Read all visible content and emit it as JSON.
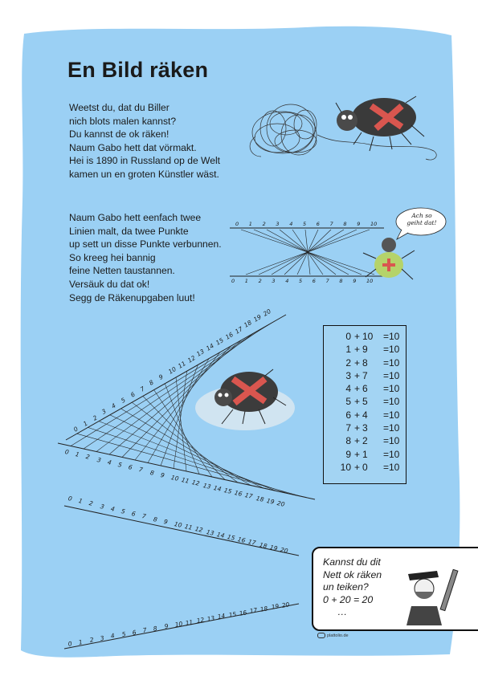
{
  "page": {
    "background_color": "#9bd0f4",
    "accent_red": "#d9564f"
  },
  "title": "En Bild räken",
  "intro_lines": [
    "Weetst du, dat du Biller",
    "nich blots malen kannst?",
    "Du kannst de ok räken!",
    "Naum Gabo hett dat vörmakt.",
    "Hei is 1890 in Russland op de Welt",
    "kamen un en groten Künstler wäst."
  ],
  "second_lines": [
    "Naum Gabo hett eenfach twee",
    "Linien malt, da twee Punkte",
    "up sett un disse Punkte verbunnen.",
    "So kreeg hei bannig",
    "feine Netten taustannen.",
    "Versäuk du dat ok!",
    "Segg de Räkenupgaben luut!"
  ],
  "speech_bubble": {
    "line1": "Ach so",
    "line2": "geiht dat!"
  },
  "sums": [
    {
      "a": "0",
      "op": "+",
      "b": "10",
      "eq": "=10"
    },
    {
      "a": "1",
      "op": "+",
      "b": "9",
      "eq": "=10"
    },
    {
      "a": "2",
      "op": "+",
      "b": "8",
      "eq": "=10"
    },
    {
      "a": "3",
      "op": "+",
      "b": "7",
      "eq": "=10"
    },
    {
      "a": "4",
      "op": "+",
      "b": "6",
      "eq": "=10"
    },
    {
      "a": "5",
      "op": "+",
      "b": "5",
      "eq": "=10"
    },
    {
      "a": "6",
      "op": "+",
      "b": "4",
      "eq": "=10"
    },
    {
      "a": "7",
      "op": "+",
      "b": "3",
      "eq": "=10"
    },
    {
      "a": "8",
      "op": "+",
      "b": "2",
      "eq": "=10"
    },
    {
      "a": "9",
      "op": "+",
      "b": "1",
      "eq": "=10"
    },
    {
      "a": "10",
      "op": "+",
      "b": "0",
      "eq": "=10"
    }
  ],
  "task_box": {
    "lines": [
      "Kannst du dit",
      "Nett ok räken",
      "un teiken?",
      "0 + 20 =  20",
      "…"
    ]
  },
  "footer": "plattolio.de",
  "ruler_small": {
    "top": [
      "0",
      "1",
      "2",
      "3",
      "4",
      "5",
      "6",
      "7",
      "8",
      "9",
      "10"
    ],
    "bottom": [
      "0",
      "1",
      "2",
      "3",
      "4",
      "5",
      "6",
      "7",
      "8",
      "9",
      "10"
    ]
  },
  "ruler_large": [
    "0",
    "1",
    "2",
    "3",
    "4",
    "5",
    "6",
    "7",
    "8",
    "9",
    "10",
    "11",
    "12",
    "13",
    "14",
    "15",
    "16",
    "17",
    "18",
    "19",
    "20"
  ]
}
